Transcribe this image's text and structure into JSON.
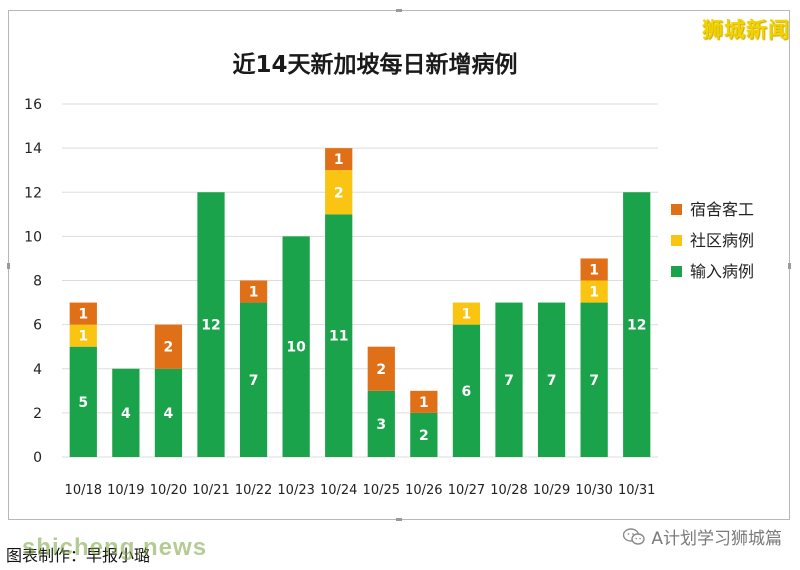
{
  "brand": "狮城新闻",
  "footer": {
    "credit": "图表制作：早报小璐",
    "site_watermark": "shicheng.news",
    "wechat_account": "A计划学习狮城篇"
  },
  "colors": {
    "dorm": "#e07018",
    "community": "#f9c512",
    "imported": "#1aa34a",
    "grid": "#dddddd"
  },
  "chart_data": {
    "type": "bar",
    "stacked": true,
    "title": "近14天新加坡每日新增病例",
    "xlabel": "",
    "ylabel": "",
    "ylim": [
      0,
      16
    ],
    "yticks": [
      0,
      2,
      4,
      6,
      8,
      10,
      12,
      14,
      16
    ],
    "grid": true,
    "legend_position": "right",
    "categories": [
      "10/18",
      "10/19",
      "10/20",
      "10/21",
      "10/22",
      "10/23",
      "10/24",
      "10/25",
      "10/26",
      "10/27",
      "10/28",
      "10/29",
      "10/30",
      "10/31"
    ],
    "series": [
      {
        "name": "输入病例",
        "color": "#1aa34a",
        "values": [
          5,
          4,
          4,
          12,
          7,
          10,
          11,
          3,
          2,
          6,
          7,
          7,
          7,
          12
        ]
      },
      {
        "name": "社区病例",
        "color": "#f9c512",
        "values": [
          1,
          0,
          0,
          0,
          0,
          0,
          2,
          0,
          0,
          1,
          0,
          0,
          1,
          0
        ]
      },
      {
        "name": "宿舍客工",
        "color": "#e07018",
        "values": [
          1,
          0,
          2,
          0,
          1,
          0,
          1,
          2,
          1,
          0,
          0,
          0,
          1,
          0
        ]
      }
    ],
    "legend_order": [
      "宿舍客工",
      "社区病例",
      "输入病例"
    ]
  }
}
